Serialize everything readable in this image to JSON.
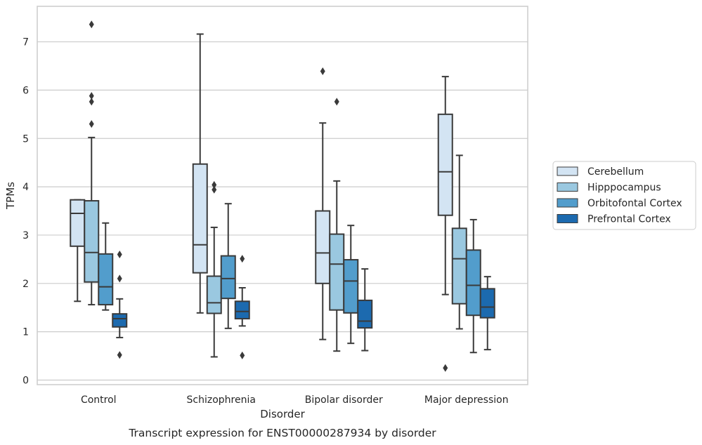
{
  "chart_data": {
    "type": "boxplot",
    "xlabel": "Disorder",
    "ylabel": "TPMs",
    "caption": "Transcript expression for ENST00000287934 by disorder",
    "ylim": [
      -0.1,
      7.7
    ],
    "yticks": [
      0,
      1,
      2,
      3,
      4,
      5,
      6,
      7
    ],
    "grid": "horizontal",
    "legend_position": "right",
    "categories": [
      "Control",
      "Schizophrenia",
      "Bipolar disorder",
      "Major depression"
    ],
    "series": [
      {
        "name": "Cerebellum",
        "color": "#d3e4f3",
        "boxes": [
          {
            "whisker_low": 1.63,
            "q1": 2.77,
            "median": 3.45,
            "q3": 3.73,
            "whisker_high": 3.73,
            "outliers": []
          },
          {
            "whisker_low": 1.39,
            "q1": 2.22,
            "median": 2.8,
            "q3": 4.47,
            "whisker_high": 7.16,
            "outliers": []
          },
          {
            "whisker_low": 0.84,
            "q1": 2.0,
            "median": 2.63,
            "q3": 3.5,
            "whisker_high": 5.32,
            "outliers": [
              6.39
            ]
          },
          {
            "whisker_low": 1.77,
            "q1": 3.41,
            "median": 4.31,
            "q3": 5.5,
            "whisker_high": 6.28,
            "outliers": [
              0.25
            ]
          }
        ]
      },
      {
        "name": "Hipppocampus",
        "color": "#9ac8e0",
        "boxes": [
          {
            "whisker_low": 1.56,
            "q1": 2.03,
            "median": 2.64,
            "q3": 3.71,
            "whisker_high": 5.02,
            "outliers": [
              5.3,
              5.76,
              5.88,
              7.36
            ]
          },
          {
            "whisker_low": 0.48,
            "q1": 1.38,
            "median": 1.6,
            "q3": 2.15,
            "whisker_high": 3.16,
            "outliers": [
              3.94,
              4.04
            ]
          },
          {
            "whisker_low": 0.6,
            "q1": 1.45,
            "median": 2.4,
            "q3": 3.02,
            "whisker_high": 4.12,
            "outliers": [
              5.76
            ]
          },
          {
            "whisker_low": 1.06,
            "q1": 1.58,
            "median": 2.51,
            "q3": 3.14,
            "whisker_high": 4.65,
            "outliers": []
          }
        ]
      },
      {
        "name": "Orbitofontal Cortex",
        "color": "#529dcc",
        "boxes": [
          {
            "whisker_low": 1.45,
            "q1": 1.56,
            "median": 1.93,
            "q3": 2.61,
            "whisker_high": 3.25,
            "outliers": []
          },
          {
            "whisker_low": 1.07,
            "q1": 1.69,
            "median": 2.1,
            "q3": 2.57,
            "whisker_high": 3.65,
            "outliers": []
          },
          {
            "whisker_low": 0.76,
            "q1": 1.39,
            "median": 2.05,
            "q3": 2.49,
            "whisker_high": 3.2,
            "outliers": []
          },
          {
            "whisker_low": 0.57,
            "q1": 1.34,
            "median": 1.96,
            "q3": 2.69,
            "whisker_high": 3.32,
            "outliers": []
          }
        ]
      },
      {
        "name": "Prefrontal Cortex",
        "color": "#1c6aaf",
        "boxes": [
          {
            "whisker_low": 0.88,
            "q1": 1.1,
            "median": 1.27,
            "q3": 1.37,
            "whisker_high": 1.68,
            "outliers": [
              0.52,
              2.1,
              2.6
            ]
          },
          {
            "whisker_low": 1.12,
            "q1": 1.27,
            "median": 1.42,
            "q3": 1.63,
            "whisker_high": 1.91,
            "outliers": [
              0.51,
              2.51
            ]
          },
          {
            "whisker_low": 0.61,
            "q1": 1.08,
            "median": 1.22,
            "q3": 1.65,
            "whisker_high": 2.3,
            "outliers": []
          },
          {
            "whisker_low": 0.63,
            "q1": 1.29,
            "median": 1.51,
            "q3": 1.89,
            "whisker_high": 2.14,
            "outliers": []
          }
        ]
      }
    ]
  }
}
